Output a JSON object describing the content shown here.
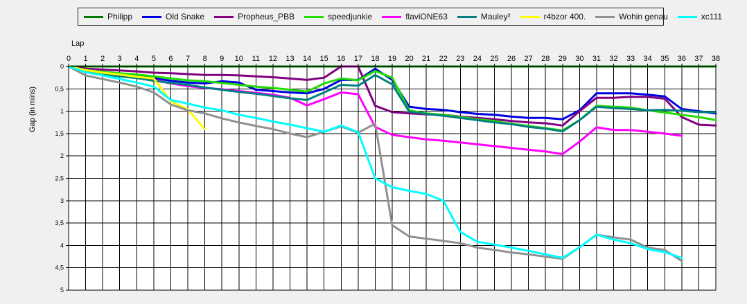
{
  "chart_data": {
    "type": "line",
    "title": "",
    "xlabel": "Lap",
    "ylabel": "Gap (in mins)",
    "x_ticks": [
      0,
      1,
      2,
      3,
      4,
      5,
      6,
      7,
      8,
      9,
      10,
      11,
      12,
      13,
      14,
      15,
      16,
      17,
      18,
      19,
      20,
      21,
      22,
      23,
      24,
      25,
      26,
      27,
      28,
      29,
      30,
      31,
      32,
      33,
      34,
      35,
      36,
      37,
      38
    ],
    "y_ticks": [
      "0",
      "0,5",
      "1",
      "1,5",
      "2",
      "2,5",
      "3",
      "3,5",
      "4",
      "4,5",
      "5"
    ],
    "xlim": [
      0,
      38
    ],
    "ylim": [
      0,
      5
    ],
    "y_inverted": true,
    "grid": true,
    "legend_position": "top",
    "series": [
      {
        "name": "Philipp",
        "color": "#007a00",
        "x": [
          0,
          1,
          2,
          3,
          4,
          5,
          6,
          7,
          8,
          9,
          10,
          11,
          12,
          13,
          14,
          15,
          16,
          17,
          18,
          19,
          20,
          21,
          22,
          23,
          24,
          25,
          26,
          27,
          28,
          29,
          30,
          31,
          32,
          33,
          34,
          35,
          36,
          37,
          38
        ],
        "values": [
          0,
          0,
          0,
          0,
          0,
          0,
          0,
          0,
          0,
          0,
          0,
          0,
          0,
          0,
          0,
          0,
          0,
          0,
          0,
          0,
          0,
          0,
          0,
          0,
          0,
          0,
          0,
          0,
          0,
          0,
          0,
          0,
          0,
          0,
          0,
          0,
          0,
          0,
          0
        ]
      },
      {
        "name": "Old Snake",
        "color": "#0000e0",
        "x": [
          0,
          1,
          2,
          3,
          4,
          5,
          6,
          7,
          8,
          9,
          10,
          11,
          12,
          13,
          14,
          15,
          16,
          17,
          18,
          19,
          20,
          21,
          22,
          23,
          24,
          25,
          26,
          27,
          28,
          29,
          30,
          31,
          32,
          33,
          34,
          35,
          36,
          37,
          38
        ],
        "values": [
          0,
          0.1,
          0.13,
          0.16,
          0.19,
          0.26,
          0.32,
          0.36,
          0.38,
          0.33,
          0.36,
          0.52,
          0.55,
          0.58,
          0.6,
          0.5,
          0.3,
          0.3,
          0.05,
          0.3,
          0.9,
          0.95,
          0.97,
          1.02,
          1.06,
          1.08,
          1.12,
          1.15,
          1.15,
          1.18,
          0.98,
          0.6,
          0.6,
          0.6,
          0.63,
          0.67,
          0.95,
          1.0,
          1.05
        ]
      },
      {
        "name": "Propheus_PBB",
        "color": "#800080",
        "x": [
          0,
          1,
          2,
          3,
          4,
          5,
          6,
          7,
          8,
          9,
          10,
          11,
          12,
          13,
          14,
          15,
          16,
          17,
          18,
          19,
          20,
          21,
          22,
          23,
          24,
          25,
          26,
          27,
          28,
          29,
          30,
          31,
          32,
          33,
          34,
          35,
          36,
          37,
          38
        ],
        "values": [
          0,
          0.05,
          0.07,
          0.09,
          0.11,
          0.14,
          0.15,
          0.17,
          0.19,
          0.19,
          0.2,
          0.22,
          0.24,
          0.27,
          0.3,
          0.25,
          0,
          0,
          0.88,
          1.02,
          1.05,
          1.07,
          1.08,
          1.12,
          1.15,
          1.18,
          1.22,
          1.25,
          1.27,
          1.32,
          1.0,
          0.7,
          0.7,
          0.68,
          0.68,
          0.72,
          1.13,
          1.3,
          1.32
        ]
      },
      {
        "name": "speedjunkie",
        "color": "#22dd00",
        "x": [
          0,
          1,
          2,
          3,
          4,
          5,
          6,
          7,
          8,
          9,
          10,
          11,
          12,
          13,
          14,
          15,
          16,
          17,
          18,
          19,
          20,
          21,
          22,
          23,
          24,
          25,
          26,
          27,
          28,
          29,
          30,
          31,
          32,
          33,
          34,
          35,
          36,
          37,
          38
        ],
        "values": [
          0,
          0.08,
          0.12,
          0.15,
          0.18,
          0.22,
          0.27,
          0.31,
          0.33,
          0.37,
          0.41,
          0.45,
          0.48,
          0.52,
          0.56,
          0.38,
          0.27,
          0.31,
          0.1,
          0.25,
          0.98,
          1.05,
          1.08,
          1.13,
          1.18,
          1.22,
          1.28,
          1.33,
          1.38,
          1.43,
          1.2,
          0.88,
          0.9,
          0.92,
          0.98,
          1.03,
          1.08,
          1.13,
          1.2
        ]
      },
      {
        "name": "flaviONE63",
        "color": "#ff00ff",
        "x": [
          0,
          1,
          2,
          3,
          4,
          5,
          6,
          7,
          8,
          9,
          10,
          11,
          12,
          13,
          14,
          15,
          16,
          17,
          18,
          19,
          20,
          21,
          22,
          23,
          24,
          25,
          26,
          27,
          28,
          29,
          30,
          31,
          32,
          33,
          34,
          35,
          36
        ],
        "values": [
          0,
          0.1,
          0.16,
          0.2,
          0.24,
          0.3,
          0.38,
          0.44,
          0.48,
          0.51,
          0.55,
          0.59,
          0.63,
          0.7,
          0.87,
          0.73,
          0.58,
          0.62,
          1.35,
          1.53,
          1.58,
          1.63,
          1.66,
          1.7,
          1.74,
          1.78,
          1.82,
          1.86,
          1.9,
          1.96,
          1.68,
          1.36,
          1.42,
          1.42,
          1.46,
          1.5,
          1.55
        ]
      },
      {
        "name": "Mauley²",
        "color": "#008080",
        "x": [
          0,
          1,
          2,
          3,
          4,
          5,
          6,
          7,
          8,
          9,
          10,
          11,
          12,
          13,
          14,
          15,
          16,
          17,
          18,
          19,
          20,
          21,
          22,
          23,
          24,
          25,
          26,
          27,
          28,
          29,
          30,
          31,
          32,
          33,
          34,
          35,
          36,
          37,
          38
        ],
        "values": [
          0,
          0.12,
          0.18,
          0.22,
          0.26,
          0.32,
          0.37,
          0.41,
          0.47,
          0.52,
          0.57,
          0.61,
          0.66,
          0.71,
          0.75,
          0.58,
          0.41,
          0.43,
          0.19,
          0.4,
          1.01,
          1.06,
          1.1,
          1.15,
          1.2,
          1.25,
          1.29,
          1.35,
          1.39,
          1.45,
          1.2,
          0.9,
          0.93,
          0.95,
          0.98,
          0.97,
          0.99,
          1.02,
          1.02
        ]
      },
      {
        "name": "r4bzor 400.",
        "color": "#ffff00",
        "x": [
          0,
          1,
          2,
          3,
          4,
          5,
          6,
          7,
          8
        ],
        "values": [
          0,
          0.08,
          0.14,
          0.18,
          0.23,
          0.27,
          0.78,
          0.96,
          1.4
        ]
      },
      {
        "name": "Wohin genau",
        "color": "#909090",
        "x": [
          0,
          1,
          2,
          3,
          4,
          5,
          6,
          7,
          8,
          9,
          10,
          11,
          12,
          13,
          14,
          15,
          16,
          17,
          18,
          19,
          20,
          21,
          22,
          23,
          24,
          25,
          26,
          27,
          28,
          29,
          30,
          31,
          32,
          33,
          34,
          35,
          36
        ],
        "values": [
          0,
          0.2,
          0.28,
          0.36,
          0.45,
          0.58,
          0.85,
          0.98,
          1.05,
          1.16,
          1.25,
          1.33,
          1.4,
          1.5,
          1.58,
          1.46,
          1.34,
          1.48,
          1.28,
          3.55,
          3.8,
          3.85,
          3.9,
          3.95,
          4.05,
          4.1,
          4.16,
          4.2,
          4.25,
          4.3,
          4.04,
          3.76,
          3.82,
          3.87,
          4.05,
          4.1,
          4.35
        ]
      },
      {
        "name": "xc111",
        "color": "#00ffff",
        "x": [
          0,
          1,
          2,
          3,
          4,
          5,
          6,
          7,
          8,
          9,
          10,
          11,
          12,
          13,
          14,
          15,
          16,
          17,
          18,
          19,
          20,
          21,
          22,
          23,
          24,
          25,
          26,
          27,
          28,
          29,
          30,
          31,
          32,
          33,
          34,
          35,
          36
        ],
        "values": [
          0,
          0.13,
          0.2,
          0.28,
          0.36,
          0.45,
          0.75,
          0.83,
          0.92,
          0.98,
          1.08,
          1.15,
          1.23,
          1.3,
          1.38,
          1.46,
          1.32,
          1.47,
          2.5,
          2.7,
          2.78,
          2.85,
          3.0,
          3.7,
          3.92,
          3.98,
          4.05,
          4.12,
          4.2,
          4.28,
          4.04,
          3.76,
          3.87,
          3.95,
          4.08,
          4.15,
          4.28
        ]
      }
    ]
  }
}
